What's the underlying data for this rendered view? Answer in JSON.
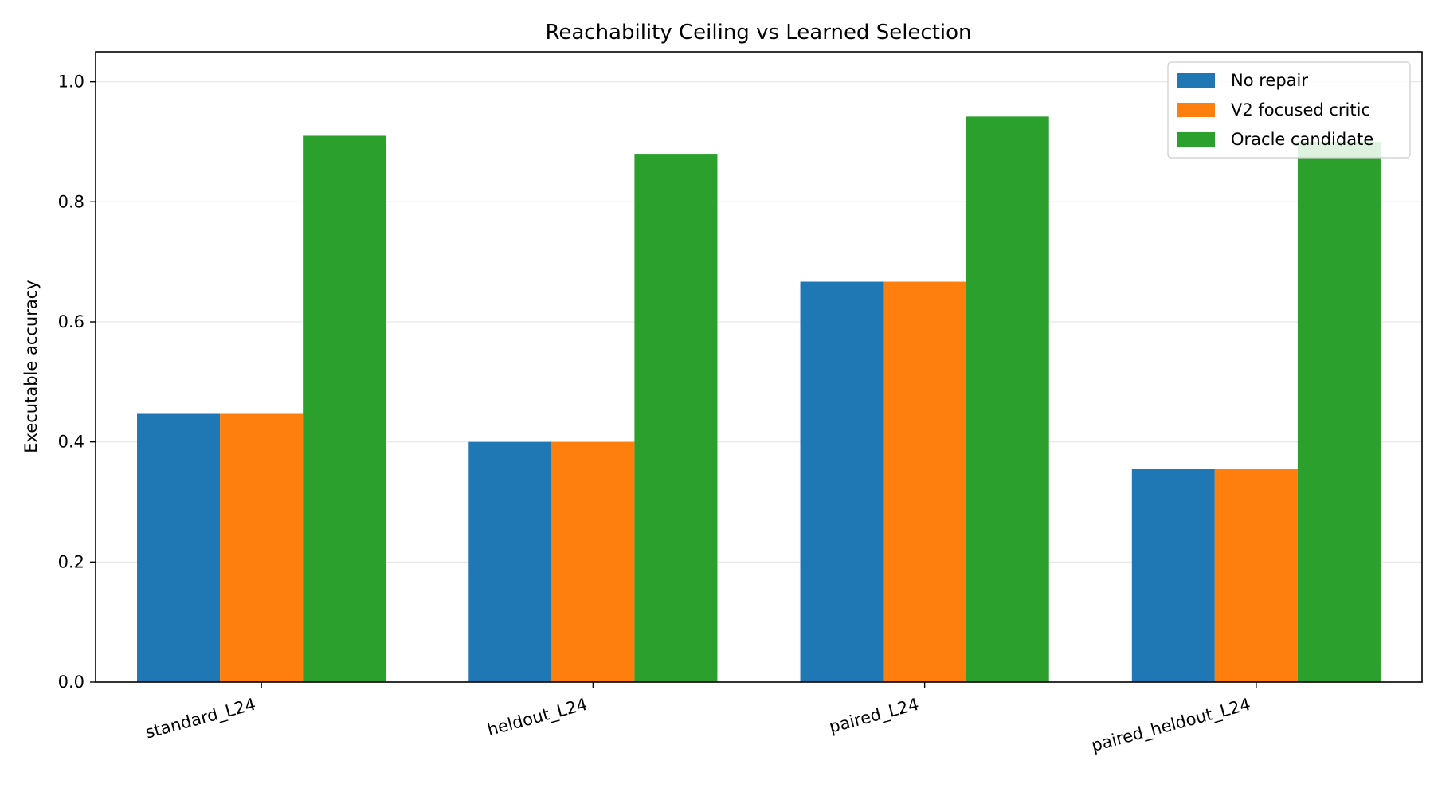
{
  "chart_data": {
    "type": "bar",
    "title": "Reachability Ceiling vs Learned Selection",
    "xlabel": "",
    "ylabel": "Executable accuracy",
    "ylim": [
      0,
      1.05
    ],
    "yticks": [
      "0.0",
      "0.2",
      "0.4",
      "0.6",
      "0.8",
      "1.0"
    ],
    "grid": "horizontal",
    "legend_position": "top-right",
    "categories": [
      "standard_L24",
      "heldout_L24",
      "paired_L24",
      "paired_heldout_L24"
    ],
    "series": [
      {
        "name": "No repair",
        "color": "#1f77b4",
        "values": [
          0.448,
          0.4,
          0.667,
          0.355
        ]
      },
      {
        "name": "V2 focused critic",
        "color": "#ff7f0e",
        "values": [
          0.448,
          0.4,
          0.667,
          0.355
        ]
      },
      {
        "name": "Oracle candidate",
        "color": "#2ca02c",
        "values": [
          0.91,
          0.88,
          0.942,
          0.9
        ]
      }
    ]
  }
}
